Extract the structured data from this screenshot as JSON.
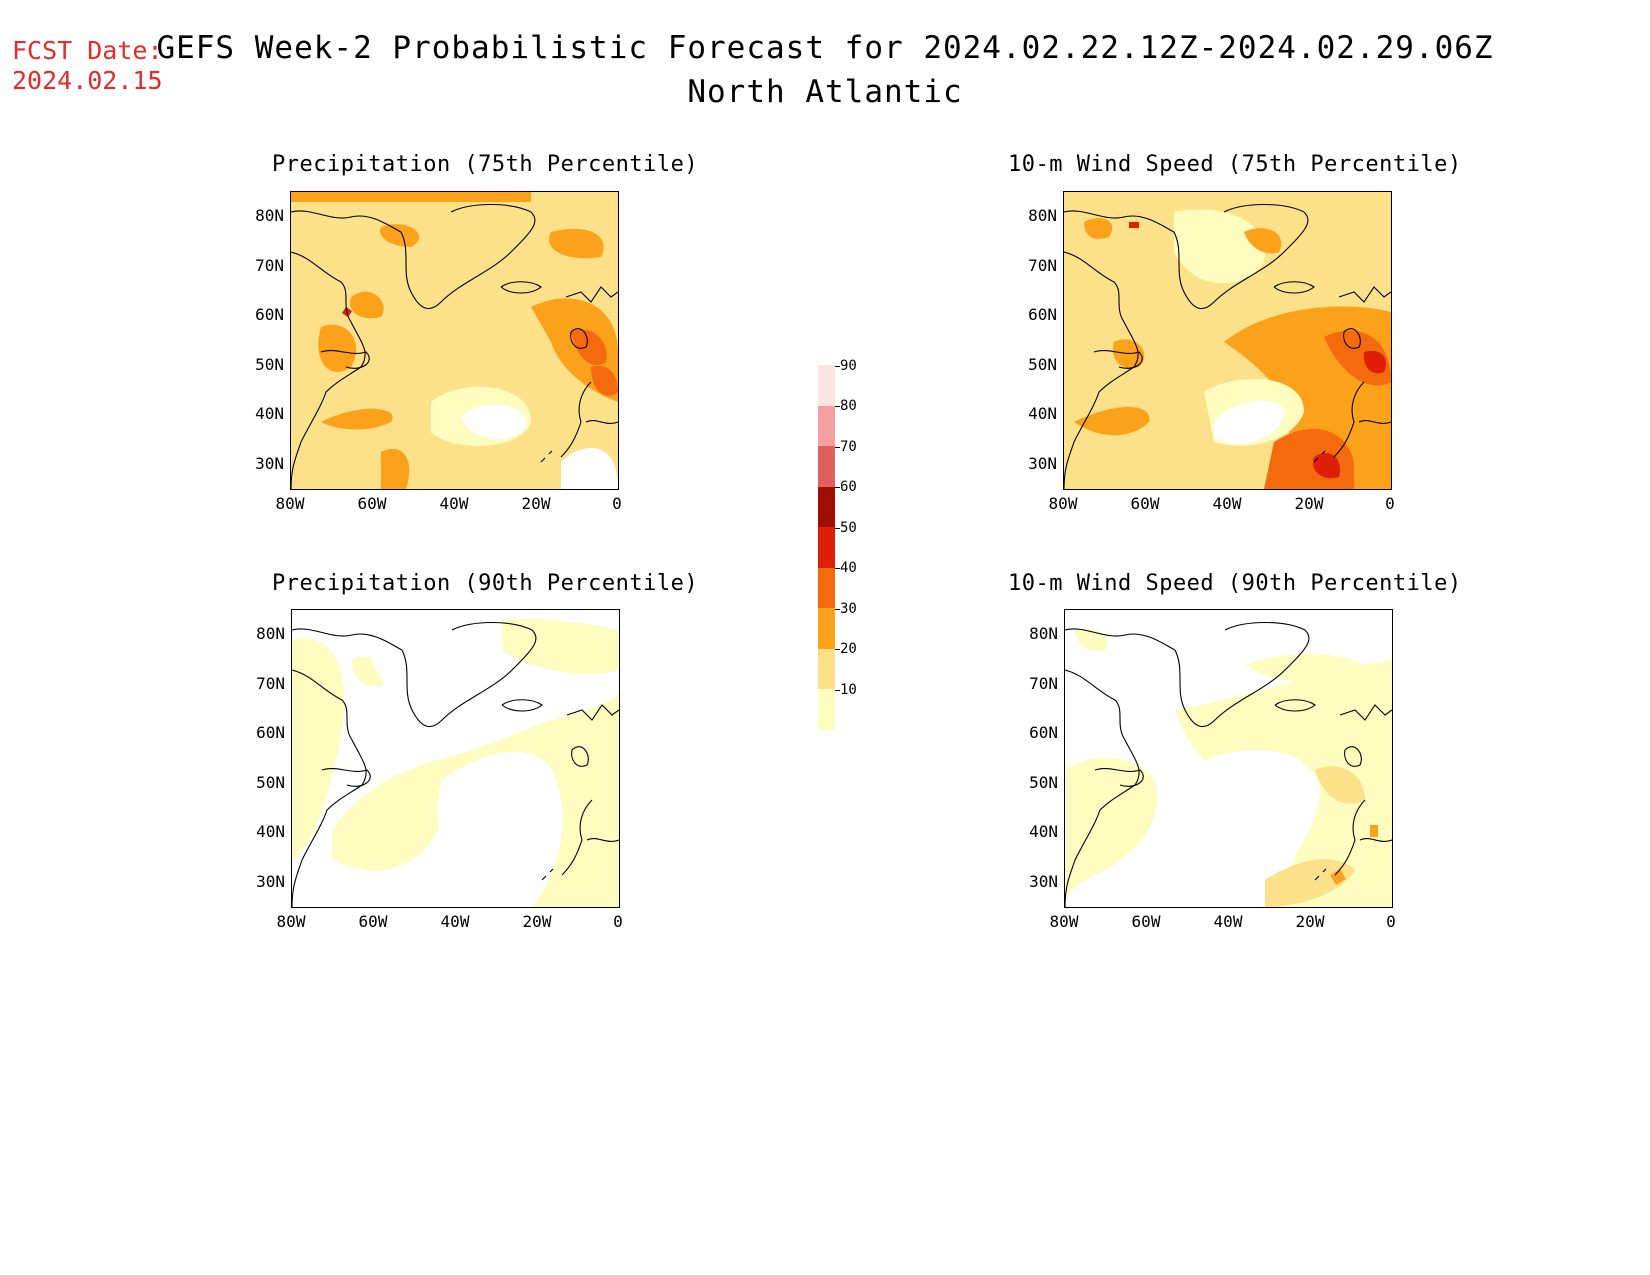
{
  "fcst_date": {
    "label": "FCST Date:",
    "value": "2024.02.15"
  },
  "title": "GEFS Week-2 Probabilistic Forecast for 2024.02.22.12Z-2024.02.29.06Z",
  "subtitle": "North Atlantic",
  "panels": [
    {
      "title": "Precipitation (75th Percentile)"
    },
    {
      "title": "10-m Wind Speed (75th Percentile)"
    },
    {
      "title": "Precipitation (90th Percentile)"
    },
    {
      "title": "10-m Wind Speed (90th Percentile)"
    }
  ],
  "lat_labels": [
    "80N",
    "70N",
    "60N",
    "50N",
    "40N",
    "30N"
  ],
  "lon_labels": [
    "80W",
    "60W",
    "40W",
    "20W",
    "0"
  ],
  "colorbar": {
    "labels": [
      "10",
      "20",
      "30",
      "40",
      "50",
      "60",
      "70",
      "80",
      "90"
    ],
    "colors": [
      "#fffcc0",
      "#fde08a",
      "#fca21a",
      "#f66a0e",
      "#de1e05",
      "#a01000",
      "#e06060",
      "#f5a0a0",
      "#fde4e4"
    ]
  },
  "colors": {
    "date": "#e8292a",
    "land_line": "#000000"
  }
}
